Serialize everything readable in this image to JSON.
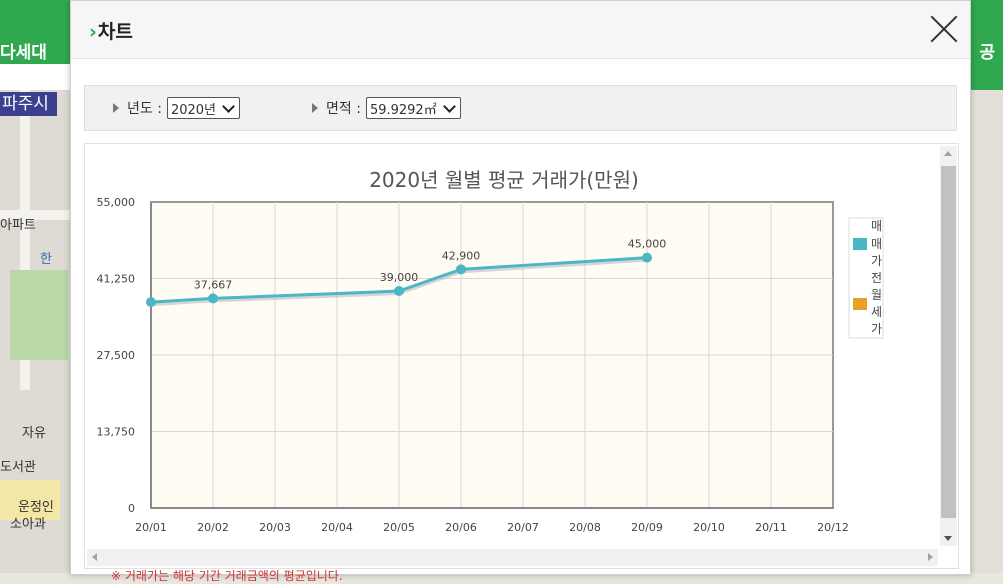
{
  "background": {
    "left_title": "다세대",
    "right_title": "공",
    "city_label": "파주시",
    "map_labels": [
      "아파트",
      "한",
      "자유",
      "도서관",
      "운정인",
      "소아과"
    ]
  },
  "modal": {
    "title": "차트",
    "title_marker": "›",
    "filters": [
      {
        "label": "년도 :",
        "value": "2020년"
      },
      {
        "label": "면적 :",
        "value": "59.9292㎡"
      }
    ],
    "footnote": "※ 거래가는 해당 기간 거래금액의 평균입니다."
  },
  "chart_data": {
    "type": "line",
    "title": "2020년 월별 평균 거래가(만원)",
    "categories": [
      "20/01",
      "20/02",
      "20/03",
      "20/04",
      "20/05",
      "20/06",
      "20/07",
      "20/08",
      "20/09",
      "20/10",
      "20/11",
      "20/12"
    ],
    "series": [
      {
        "name": "매매가",
        "color": "#4ab6c6",
        "values": [
          37000,
          37667,
          null,
          null,
          39000,
          42900,
          null,
          null,
          45000,
          null,
          null,
          null
        ],
        "labels": [
          "",
          "37,667",
          "",
          "",
          "39,000",
          "42,900",
          "",
          "",
          "45,000",
          "",
          "",
          ""
        ]
      },
      {
        "name": "전월세가",
        "color": "#e8a22b",
        "values": [
          null,
          null,
          null,
          null,
          null,
          null,
          null,
          null,
          null,
          null,
          null,
          null
        ]
      }
    ],
    "yticks": [
      "0",
      "13,750",
      "27,500",
      "41,250",
      "55,000"
    ],
    "ylim": [
      0,
      55000
    ],
    "grid": true,
    "legend_position": "right",
    "legend_text": [
      "매",
      "매",
      "가",
      "전",
      "월",
      "세",
      "가"
    ],
    "plot_background": "#fffdf3"
  }
}
